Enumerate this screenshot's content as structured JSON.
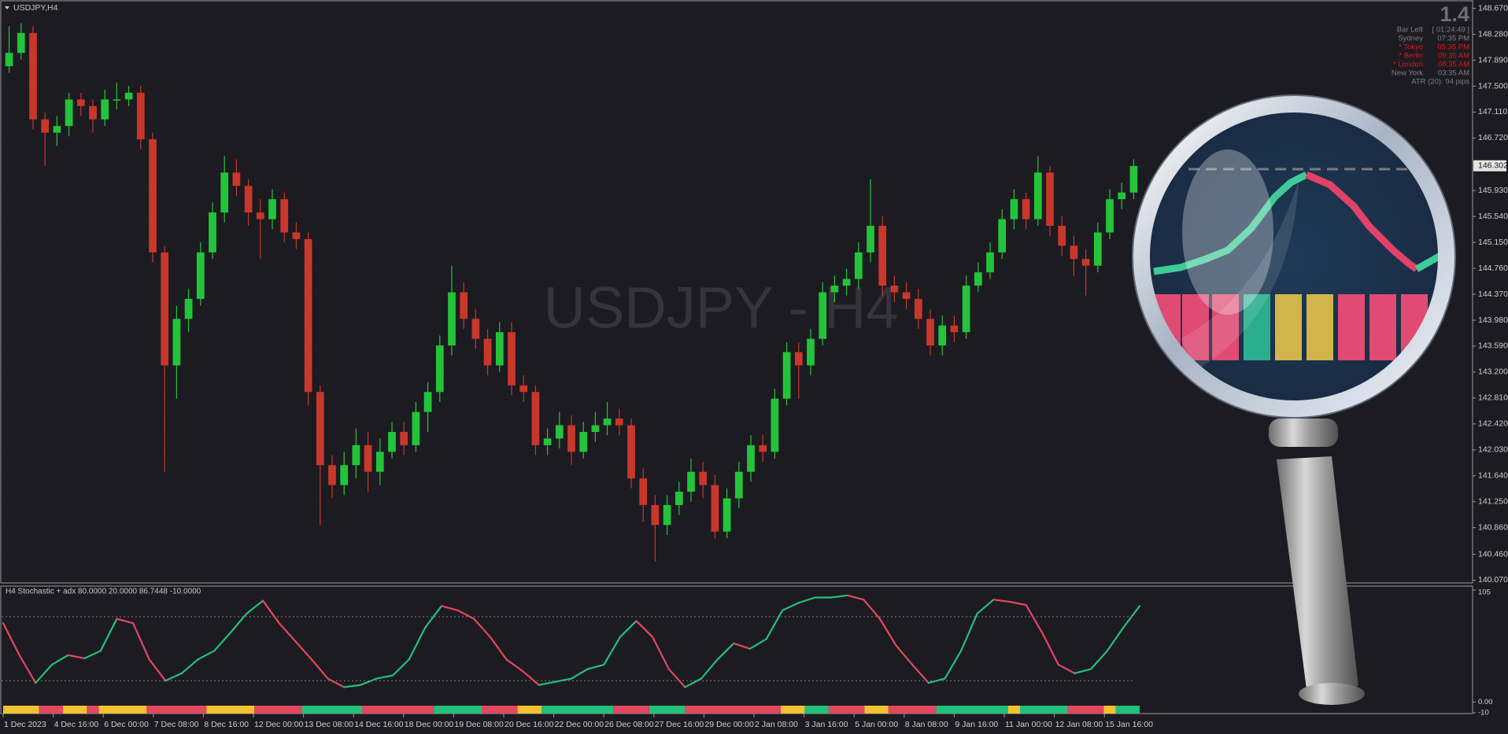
{
  "chart_data": {
    "type": "candlestick",
    "title": "USDJPY,H4",
    "watermark": "USDJPY - H4",
    "up_color": "#23c43a",
    "down_color": "#c9372b",
    "candles": [
      [
        147.8,
        148.4,
        147.7,
        148.0
      ],
      [
        148.0,
        148.45,
        147.9,
        148.3
      ],
      [
        148.3,
        148.4,
        146.85,
        147.0
      ],
      [
        147.0,
        147.1,
        146.3,
        146.8
      ],
      [
        146.8,
        147.05,
        146.6,
        146.9
      ],
      [
        146.9,
        147.4,
        146.75,
        147.3
      ],
      [
        147.3,
        147.4,
        147.05,
        147.2
      ],
      [
        147.2,
        147.3,
        146.8,
        147.0
      ],
      [
        147.0,
        147.45,
        146.9,
        147.3
      ],
      [
        147.3,
        147.55,
        147.15,
        147.3
      ],
      [
        147.3,
        147.5,
        147.2,
        147.4
      ],
      [
        147.4,
        147.5,
        146.55,
        146.7
      ],
      [
        146.7,
        146.8,
        144.85,
        145.0
      ],
      [
        145.0,
        145.1,
        141.7,
        143.3
      ],
      [
        143.3,
        144.2,
        142.8,
        144.0
      ],
      [
        144.0,
        144.45,
        143.8,
        144.3
      ],
      [
        144.3,
        145.15,
        144.2,
        145.0
      ],
      [
        145.0,
        145.75,
        144.9,
        145.6
      ],
      [
        145.6,
        146.45,
        145.45,
        146.2
      ],
      [
        146.2,
        146.4,
        145.85,
        146.0
      ],
      [
        146.0,
        146.1,
        145.4,
        145.6
      ],
      [
        145.6,
        145.8,
        144.9,
        145.5
      ],
      [
        145.5,
        145.95,
        145.35,
        145.8
      ],
      [
        145.8,
        145.9,
        145.15,
        145.3
      ],
      [
        145.3,
        145.45,
        145.05,
        145.2
      ],
      [
        145.2,
        145.3,
        142.7,
        142.9
      ],
      [
        142.9,
        143.0,
        140.9,
        141.8
      ],
      [
        141.8,
        141.95,
        141.3,
        141.5
      ],
      [
        141.5,
        142.0,
        141.35,
        141.8
      ],
      [
        141.8,
        142.35,
        141.6,
        142.1
      ],
      [
        142.1,
        142.3,
        141.4,
        141.7
      ],
      [
        141.7,
        142.2,
        141.5,
        142.0
      ],
      [
        142.0,
        142.45,
        141.9,
        142.3
      ],
      [
        142.3,
        142.45,
        141.95,
        142.1
      ],
      [
        142.1,
        142.75,
        142.0,
        142.6
      ],
      [
        142.6,
        143.05,
        142.3,
        142.9
      ],
      [
        142.9,
        143.75,
        142.75,
        143.6
      ],
      [
        143.6,
        144.8,
        143.45,
        144.4
      ],
      [
        144.4,
        144.55,
        143.85,
        144.0
      ],
      [
        144.0,
        144.15,
        143.55,
        143.7
      ],
      [
        143.7,
        143.85,
        143.15,
        143.3
      ],
      [
        143.3,
        143.95,
        143.2,
        143.8
      ],
      [
        143.8,
        143.95,
        142.85,
        143.0
      ],
      [
        143.0,
        143.15,
        142.75,
        142.9
      ],
      [
        142.9,
        143.0,
        141.95,
        142.1
      ],
      [
        142.1,
        142.35,
        141.95,
        142.2
      ],
      [
        142.2,
        142.6,
        142.05,
        142.4
      ],
      [
        142.4,
        142.55,
        141.8,
        142.0
      ],
      [
        142.0,
        142.45,
        141.9,
        142.3
      ],
      [
        142.3,
        142.6,
        142.15,
        142.4
      ],
      [
        142.4,
        142.75,
        142.25,
        142.5
      ],
      [
        142.5,
        142.65,
        142.25,
        142.4
      ],
      [
        142.4,
        142.5,
        141.45,
        141.6
      ],
      [
        141.6,
        141.75,
        140.95,
        141.2
      ],
      [
        141.2,
        141.35,
        140.35,
        140.9
      ],
      [
        140.9,
        141.35,
        140.75,
        141.2
      ],
      [
        141.2,
        141.55,
        141.05,
        141.4
      ],
      [
        141.4,
        141.9,
        141.25,
        141.7
      ],
      [
        141.7,
        141.85,
        141.3,
        141.5
      ],
      [
        141.5,
        141.65,
        140.7,
        140.8
      ],
      [
        140.8,
        141.45,
        140.7,
        141.3
      ],
      [
        141.3,
        141.85,
        141.15,
        141.7
      ],
      [
        141.7,
        142.25,
        141.55,
        142.1
      ],
      [
        142.1,
        142.25,
        141.85,
        142.0
      ],
      [
        142.0,
        142.95,
        141.9,
        142.8
      ],
      [
        142.8,
        143.65,
        142.7,
        143.5
      ],
      [
        143.5,
        143.65,
        142.8,
        143.3
      ],
      [
        143.3,
        143.85,
        143.15,
        143.7
      ],
      [
        143.7,
        144.55,
        143.6,
        144.4
      ],
      [
        144.4,
        144.65,
        144.25,
        144.5
      ],
      [
        144.5,
        144.75,
        144.35,
        144.6
      ],
      [
        144.6,
        145.15,
        144.45,
        145.0
      ],
      [
        145.0,
        146.1,
        144.85,
        145.4
      ],
      [
        145.4,
        145.55,
        144.35,
        144.5
      ],
      [
        144.5,
        144.65,
        144.25,
        144.4
      ],
      [
        144.4,
        144.55,
        144.15,
        144.3
      ],
      [
        144.3,
        144.45,
        143.85,
        144.0
      ],
      [
        144.0,
        144.15,
        143.45,
        143.6
      ],
      [
        143.6,
        144.05,
        143.45,
        143.9
      ],
      [
        143.9,
        144.05,
        143.65,
        143.8
      ],
      [
        143.8,
        144.65,
        143.7,
        144.5
      ],
      [
        144.5,
        144.85,
        144.4,
        144.7
      ],
      [
        144.7,
        145.15,
        144.6,
        145.0
      ],
      [
        145.0,
        145.65,
        144.9,
        145.5
      ],
      [
        145.5,
        145.95,
        145.35,
        145.8
      ],
      [
        145.8,
        145.9,
        145.35,
        145.5
      ],
      [
        145.5,
        146.45,
        145.4,
        146.2
      ],
      [
        146.2,
        146.3,
        145.25,
        145.4
      ],
      [
        145.4,
        145.55,
        144.95,
        145.1
      ],
      [
        145.1,
        145.25,
        144.65,
        144.9
      ],
      [
        144.9,
        145.05,
        144.35,
        144.8
      ],
      [
        144.8,
        145.45,
        144.7,
        145.3
      ],
      [
        145.3,
        145.95,
        145.2,
        145.8
      ],
      [
        145.8,
        146.05,
        145.65,
        145.9
      ],
      [
        145.9,
        146.4,
        145.8,
        146.3
      ]
    ],
    "ylim": [
      140.04,
      148.76
    ],
    "yticks": [
      {
        "value": 148.67,
        "label": "148.670"
      },
      {
        "value": 148.28,
        "label": "148.280"
      },
      {
        "value": 147.89,
        "label": "147.890"
      },
      {
        "value": 147.5,
        "label": "147.500"
      },
      {
        "value": 147.11,
        "label": "147.110"
      },
      {
        "value": 146.72,
        "label": "146.720"
      },
      {
        "value": 145.93,
        "label": "145.930"
      },
      {
        "value": 145.54,
        "label": "145.540"
      },
      {
        "value": 145.15,
        "label": "145.150"
      },
      {
        "value": 144.76,
        "label": "144.760"
      },
      {
        "value": 144.37,
        "label": "144.370"
      },
      {
        "value": 143.98,
        "label": "143.980"
      },
      {
        "value": 143.59,
        "label": "143.590"
      },
      {
        "value": 143.2,
        "label": "143.200"
      },
      {
        "value": 142.81,
        "label": "142.810"
      },
      {
        "value": 142.42,
        "label": "142.420"
      },
      {
        "value": 142.03,
        "label": "142.030"
      },
      {
        "value": 141.64,
        "label": "141.640"
      },
      {
        "value": 141.25,
        "label": "141.250"
      },
      {
        "value": 140.86,
        "label": "140.860"
      },
      {
        "value": 140.46,
        "label": "140.460"
      },
      {
        "value": 140.07,
        "label": "140.070"
      }
    ],
    "current_price": 146.302,
    "x_labels": [
      "1 Dec 2023",
      "4 Dec 16:00",
      "6 Dec 00:00",
      "7 Dec 08:00",
      "8 Dec 16:00",
      "12 Dec 00:00",
      "13 Dec 08:00",
      "14 Dec 16:00",
      "18 Dec 00:00",
      "19 Dec 08:00",
      "20 Dec 16:00",
      "22 Dec 00:00",
      "26 Dec 08:00",
      "27 Dec 16:00",
      "29 Dec 00:00",
      "2 Jan 08:00",
      "3 Jan 16:00",
      "5 Jan 00:00",
      "8 Jan 08:00",
      "9 Jan 16:00",
      "11 Jan 00:00",
      "12 Jan 08:00",
      "15 Jan 16:00"
    ],
    "indicator": {
      "type": "line",
      "title": "H4 Stochastic + adx 80.0000 20.0000 86.7448 -10.0000",
      "rising_color": "#22c07c",
      "falling_color": "#e2485f",
      "values": [
        74,
        44,
        18,
        35,
        44,
        41,
        48,
        78,
        74,
        40,
        20,
        27,
        40,
        48,
        65,
        83,
        95,
        74,
        57,
        40,
        22,
        14,
        16,
        22,
        25,
        40,
        70,
        90,
        86,
        78,
        61,
        40,
        29,
        16,
        19,
        22,
        31,
        35,
        61,
        76,
        61,
        31,
        14,
        22,
        40,
        55,
        50,
        59,
        86,
        93,
        98,
        98,
        100,
        96,
        78,
        53,
        35,
        18,
        22,
        48,
        83,
        96,
        94,
        91,
        65,
        35,
        27,
        31,
        48,
        70,
        90
      ],
      "ylim": [
        -10,
        105
      ],
      "yticks": [
        105,
        {
          "value": 0,
          "label": "0.00"
        },
        -10
      ],
      "levels": [
        80,
        20
      ],
      "strip": [
        {
          "color": "#f2c230",
          "count": 3
        },
        {
          "color": "#e2485f",
          "count": 2
        },
        {
          "color": "#f2c230",
          "count": 2
        },
        {
          "color": "#e2485f",
          "count": 1
        },
        {
          "color": "#f2c230",
          "count": 4
        },
        {
          "color": "#e2485f",
          "count": 5
        },
        {
          "color": "#f2c230",
          "count": 4
        },
        {
          "color": "#e2485f",
          "count": 4
        },
        {
          "color": "#22c07c",
          "count": 5
        },
        {
          "color": "#e2485f",
          "count": 6
        },
        {
          "color": "#22c07c",
          "count": 4
        },
        {
          "color": "#e2485f",
          "count": 3
        },
        {
          "color": "#f2c230",
          "count": 2
        },
        {
          "color": "#22c07c",
          "count": 6
        },
        {
          "color": "#e2485f",
          "count": 3
        },
        {
          "color": "#22c07c",
          "count": 3
        },
        {
          "color": "#e2485f",
          "count": 8
        },
        {
          "color": "#f2c230",
          "count": 2
        },
        {
          "color": "#22c07c",
          "count": 2
        },
        {
          "color": "#e2485f",
          "count": 3
        },
        {
          "color": "#f2c230",
          "count": 2
        },
        {
          "color": "#e2485f",
          "count": 4
        },
        {
          "color": "#22c07c",
          "count": 6
        },
        {
          "color": "#f2c230",
          "count": 1
        },
        {
          "color": "#22c07c",
          "count": 4
        },
        {
          "color": "#e2485f",
          "count": 3
        },
        {
          "color": "#f2c230",
          "count": 1
        },
        {
          "color": "#22c07c",
          "count": 2
        }
      ]
    }
  },
  "info_panel": {
    "spread": "1.4",
    "rows": [
      {
        "label": "Bar Left",
        "value": "[ 01:24:49 ]",
        "color": "#7d7d82"
      },
      {
        "label": "Sydney",
        "value": "07:35 PM",
        "color": "#7d7d82"
      },
      {
        "label": "* Tokyo",
        "value": "05:35 PM",
        "color": "#e01818"
      },
      {
        "label": "* Berlin",
        "value": "09:35 AM",
        "color": "#e01818"
      },
      {
        "label": "* London",
        "value": "08:35 AM",
        "color": "#e01818"
      },
      {
        "label": "New York",
        "value": "03:35 AM",
        "color": "#7d7d82"
      }
    ],
    "atr": "ATR (20): 94 pips"
  }
}
